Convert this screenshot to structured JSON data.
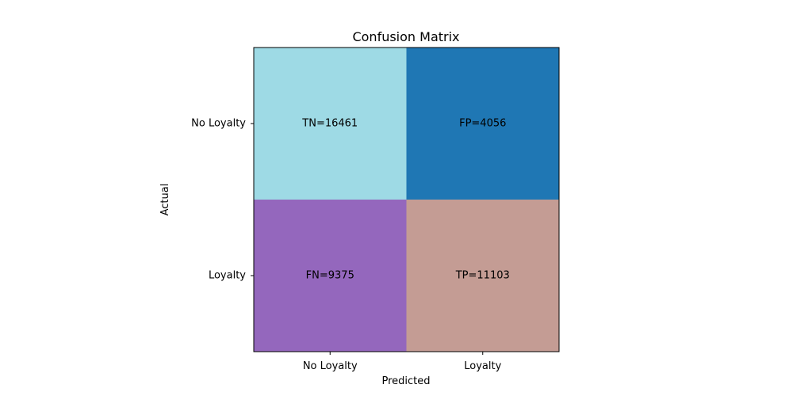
{
  "chart_data": {
    "type": "heatmap",
    "title": "Confusion Matrix",
    "xlabel": "Predicted",
    "ylabel": "Actual",
    "x_categories": [
      "No Loyalty",
      "Loyalty"
    ],
    "y_categories": [
      "No Loyalty",
      "Loyalty"
    ],
    "cells": [
      {
        "row": 0,
        "col": 0,
        "value": 16461,
        "label": "TN=16461",
        "color": "#9edae5"
      },
      {
        "row": 0,
        "col": 1,
        "value": 4056,
        "label": "FP=4056",
        "color": "#1f77b4"
      },
      {
        "row": 1,
        "col": 0,
        "value": 9375,
        "label": "FN=9375",
        "color": "#9467bd"
      },
      {
        "row": 1,
        "col": 1,
        "value": 11103,
        "label": "TP=11103",
        "color": "#c49c94"
      }
    ]
  }
}
